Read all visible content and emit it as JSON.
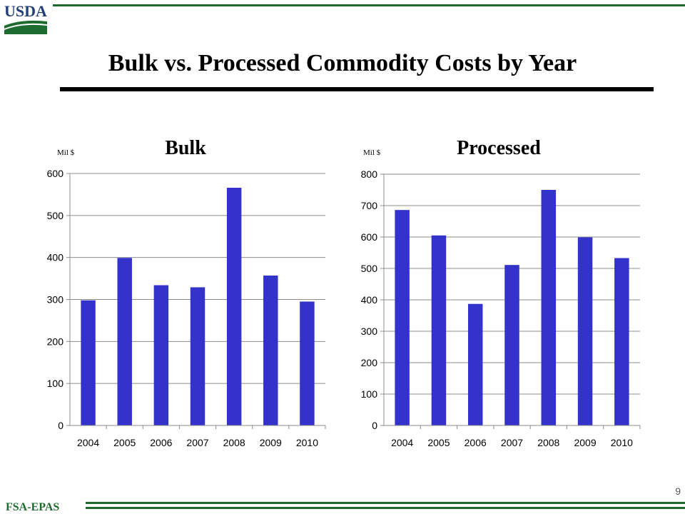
{
  "header": {
    "logo_text": "USDA",
    "title": "Bulk vs. Processed Commodity Costs by Year"
  },
  "footer": {
    "label": "FSA-EPAS",
    "page_number": "9"
  },
  "colors": {
    "bar": "#3333cc",
    "grid": "#8c8c8c",
    "accent_green": "#1e6b2f",
    "logo_blue": "#233f7a"
  },
  "chart_data": [
    {
      "type": "bar",
      "title": "Bulk",
      "ylabel": "Mil $",
      "xlabel": "",
      "categories": [
        "2004",
        "2005",
        "2006",
        "2007",
        "2008",
        "2009",
        "2010"
      ],
      "values": [
        298,
        399,
        334,
        329,
        566,
        357,
        295
      ],
      "ylim": [
        0,
        600
      ],
      "yticks": [
        0,
        100,
        200,
        300,
        400,
        500,
        600
      ],
      "grid": true,
      "legend": "none"
    },
    {
      "type": "bar",
      "title": "Processed",
      "ylabel": "Mil $",
      "xlabel": "",
      "categories": [
        "2004",
        "2005",
        "2006",
        "2007",
        "2008",
        "2009",
        "2010"
      ],
      "values": [
        686,
        605,
        387,
        511,
        750,
        599,
        533
      ],
      "ylim": [
        0,
        800
      ],
      "yticks": [
        0,
        100,
        200,
        300,
        400,
        500,
        600,
        700,
        800
      ],
      "grid": true,
      "legend": "none"
    }
  ]
}
